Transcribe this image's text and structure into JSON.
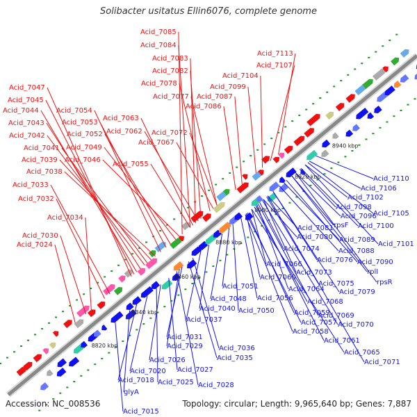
{
  "title": "Solibacter usitatus Ellin6076, complete genome",
  "footer": {
    "accession": "Accession: NC_008536",
    "topology": "Topology: circular; Length: 9,965,640 bp; Genes: 7,887"
  },
  "colors": {
    "forward": "#ee1111",
    "reverse": "#1111ee",
    "backbone": "#888888",
    "tick": "#119911"
  },
  "coordinates": [
    "8820 kbp",
    "8840 kbp",
    "8860 kbp",
    "8880 kbp",
    "8900 kbp",
    "8920 kbp",
    "8940 kbp"
  ],
  "forward_labels": [
    "Acid_7085",
    "Acid_7084",
    "Acid_7083",
    "Acid_7082",
    "Acid_7078",
    "Acid_7077",
    "Acid_7113",
    "Acid_7107",
    "Acid_7104",
    "Acid_7099",
    "Acid_7087",
    "Acid_7086",
    "Acid_7047",
    "Acid_7045",
    "Acid_7044",
    "Acid_7043",
    "Acid_7042",
    "Acid_7041",
    "Acid_7039",
    "Acid_7038",
    "Acid_7054",
    "Acid_7053",
    "Acid_7052",
    "Acid_7049",
    "Acid_7046",
    "Acid_7063",
    "Acid_7062",
    "Acid_7072",
    "Acid_7067",
    "Acid_7055",
    "Acid_7033",
    "Acid_7032",
    "Acid_7034",
    "Acid_7030",
    "Acid_7024"
  ],
  "reverse_labels": [
    "Acid_7110",
    "Acid_7106",
    "Acid_7102",
    "Acid_7098",
    "Acid_7105",
    "Acid_7096",
    "rpsF",
    "Acid_7100",
    "Acid_7081",
    "Acid_7089",
    "Acid_7101",
    "Acid_7080",
    "Acid_7088",
    "Acid_7074",
    "Acid_7076",
    "Acid_7090",
    "Acid_7066",
    "Acid_7073",
    "rplI",
    "Acid_7060",
    "rpsR",
    "Acid_7075",
    "Acid_7064",
    "Acid_7079",
    "Acid_7051",
    "Acid_7056",
    "Acid_7048",
    "Acid_7068",
    "Acid_7050",
    "Acid_7059",
    "Acid_7040",
    "Acid_7069",
    "Acid_7057",
    "Acid_7037",
    "Acid_7070",
    "Acid_7058",
    "Acid_7061",
    "Acid_7031",
    "Acid_7029",
    "Acid_7036",
    "Acid_7035",
    "Acid_7065",
    "Acid_7026",
    "Acid_7071",
    "Acid_7020",
    "Acid_7027",
    "Acid_7018",
    "Acid_7025",
    "Acid_7028",
    "glyA",
    "Acid_7015"
  ]
}
